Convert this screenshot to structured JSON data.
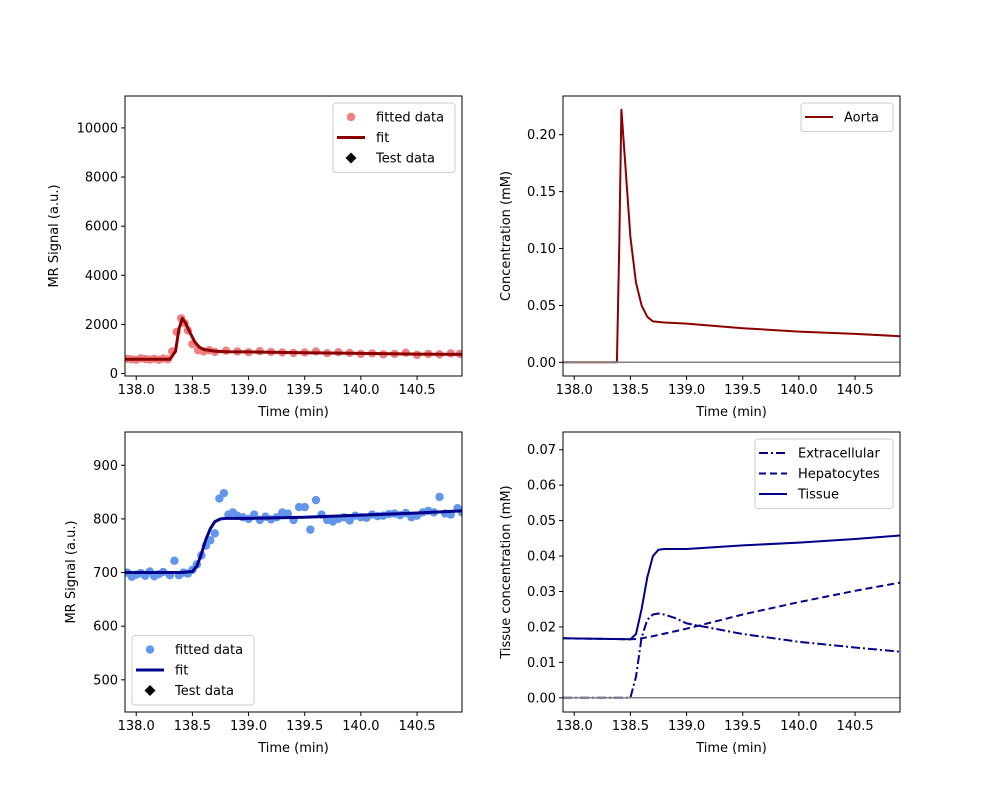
{
  "chart_data": [
    {
      "type": "scatter",
      "xlabel": "Time (min)",
      "ylabel": "MR Signal (a.u.)",
      "xlim": [
        137.9,
        140.9
      ],
      "ylim": [
        -100,
        11300
      ],
      "xticks": [
        "138.0",
        "138.5",
        "139.0",
        "139.5",
        "140.0",
        "140.5"
      ],
      "yticks": [
        "0",
        "2000",
        "4000",
        "6000",
        "8000",
        "10000"
      ],
      "legend_position": "top-right",
      "legend": [
        {
          "label": "fitted data",
          "marker": "dot",
          "color": "#f08080"
        },
        {
          "label": "fit",
          "marker": "line",
          "color": "#8b0000"
        },
        {
          "label": "Test data",
          "marker": "diamond",
          "color": "#000000"
        }
      ],
      "series": [
        {
          "name": "fitted data",
          "kind": "points",
          "color": "#f08080",
          "x": [
            137.92,
            137.96,
            138.0,
            138.04,
            138.08,
            138.12,
            138.16,
            138.2,
            138.24,
            138.28,
            138.32,
            138.36,
            138.4,
            138.43,
            138.46,
            138.5,
            138.55,
            138.6,
            138.65,
            138.7,
            138.8,
            138.9,
            139.0,
            139.1,
            139.2,
            139.3,
            139.4,
            139.5,
            139.6,
            139.7,
            139.8,
            139.9,
            140.0,
            140.1,
            140.2,
            140.3,
            140.4,
            140.5,
            140.6,
            140.7,
            140.8,
            140.88
          ],
          "y": [
            600,
            580,
            560,
            620,
            590,
            570,
            600,
            560,
            610,
            580,
            900,
            1700,
            2250,
            2050,
            1750,
            1200,
            950,
            900,
            950,
            880,
            930,
            900,
            870,
            910,
            880,
            860,
            840,
            860,
            900,
            830,
            870,
            840,
            800,
            820,
            780,
            800,
            850,
            760,
            800,
            780,
            820,
            800
          ]
        },
        {
          "name": "fit",
          "kind": "line",
          "color": "#8b0000",
          "width": 3,
          "x": [
            137.9,
            138.3,
            138.35,
            138.38,
            138.41,
            138.44,
            138.48,
            138.52,
            138.56,
            138.6,
            138.7,
            138.8,
            139.0,
            139.5,
            140.0,
            140.5,
            140.9
          ],
          "y": [
            580,
            580,
            900,
            1800,
            2250,
            2050,
            1650,
            1300,
            1080,
            980,
            910,
            890,
            880,
            850,
            820,
            790,
            780
          ]
        }
      ]
    },
    {
      "type": "line",
      "xlabel": "Time (min)",
      "ylabel": "Concentration (mM)",
      "xlim": [
        137.9,
        140.9
      ],
      "ylim": [
        -0.012,
        0.234
      ],
      "xticks": [
        "138.0",
        "138.5",
        "139.0",
        "139.5",
        "140.0",
        "140.5"
      ],
      "yticks": [
        "0.00",
        "0.05",
        "0.10",
        "0.15",
        "0.20"
      ],
      "legend_position": "top-right",
      "legend": [
        {
          "label": "Aorta",
          "marker": "line",
          "color": "#8b0000"
        }
      ],
      "series": [
        {
          "name": "Aorta",
          "kind": "line",
          "color": "#8b0000",
          "width": 2,
          "x": [
            137.9,
            138.38,
            138.4,
            138.42,
            138.45,
            138.5,
            138.55,
            138.6,
            138.65,
            138.7,
            138.8,
            139.0,
            139.5,
            140.0,
            140.5,
            140.9
          ],
          "y": [
            0,
            0,
            0.1,
            0.222,
            0.18,
            0.11,
            0.07,
            0.05,
            0.04,
            0.036,
            0.035,
            0.034,
            0.03,
            0.027,
            0.025,
            0.023
          ]
        },
        {
          "kind": "line",
          "color": "#808080",
          "width": 1.5,
          "x": [
            137.9,
            140.9
          ],
          "y": [
            0,
            0
          ]
        }
      ]
    },
    {
      "type": "scatter",
      "xlabel": "Time (min)",
      "ylabel": "MR Signal (a.u.)",
      "xlim": [
        137.9,
        140.9
      ],
      "ylim": [
        440,
        962
      ],
      "xticks": [
        "138.0",
        "138.5",
        "139.0",
        "139.5",
        "140.0",
        "140.5"
      ],
      "yticks": [
        "500",
        "600",
        "700",
        "800",
        "900"
      ],
      "legend_position": "bottom-left",
      "legend": [
        {
          "label": "fitted data",
          "marker": "dot",
          "color": "#6495ed"
        },
        {
          "label": "fit",
          "marker": "line",
          "color": "#00008b"
        },
        {
          "label": "Test data",
          "marker": "diamond",
          "color": "#000000"
        }
      ],
      "series": [
        {
          "name": "fitted data",
          "kind": "points",
          "color": "#6495ed",
          "x": [
            137.92,
            137.96,
            138.0,
            138.04,
            138.08,
            138.12,
            138.16,
            138.2,
            138.24,
            138.3,
            138.34,
            138.38,
            138.42,
            138.46,
            138.5,
            138.54,
            138.58,
            138.62,
            138.66,
            138.7,
            138.74,
            138.78,
            138.82,
            138.86,
            138.9,
            138.95,
            139.0,
            139.05,
            139.1,
            139.15,
            139.2,
            139.25,
            139.3,
            139.35,
            139.4,
            139.45,
            139.5,
            139.55,
            139.6,
            139.65,
            139.7,
            139.75,
            139.8,
            139.85,
            139.9,
            139.95,
            140.0,
            140.05,
            140.1,
            140.15,
            140.2,
            140.25,
            140.3,
            140.35,
            140.4,
            140.45,
            140.5,
            140.55,
            140.6,
            140.65,
            140.7,
            140.75,
            140.8,
            140.86,
            140.9
          ],
          "y": [
            700,
            692,
            696,
            699,
            694,
            702,
            693,
            697,
            701,
            695,
            722,
            695,
            700,
            698,
            705,
            715,
            732,
            750,
            760,
            773,
            838,
            848,
            808,
            812,
            806,
            803,
            800,
            808,
            798,
            804,
            799,
            803,
            812,
            810,
            798,
            822,
            822,
            780,
            835,
            808,
            798,
            795,
            800,
            803,
            797,
            806,
            803,
            802,
            808,
            805,
            806,
            809,
            810,
            807,
            811,
            803,
            806,
            812,
            815,
            812,
            841,
            810,
            808,
            820,
            812
          ]
        },
        {
          "name": "fit",
          "kind": "line",
          "color": "#00008b",
          "width": 3,
          "x": [
            137.9,
            138.4,
            138.5,
            138.54,
            138.58,
            138.62,
            138.66,
            138.7,
            138.75,
            138.8,
            139.0,
            139.5,
            140.0,
            140.5,
            140.9
          ],
          "y": [
            700,
            700,
            702,
            712,
            735,
            762,
            782,
            795,
            800,
            801,
            801,
            803,
            807,
            811,
            815
          ]
        }
      ]
    },
    {
      "type": "line",
      "xlabel": "Time (min)",
      "ylabel": "Tissue concentration (mM)",
      "xlim": [
        137.9,
        140.9
      ],
      "ylim": [
        -0.004,
        0.075
      ],
      "xticks": [
        "138.0",
        "138.5",
        "139.0",
        "139.5",
        "140.0",
        "140.5"
      ],
      "yticks": [
        "0.00",
        "0.01",
        "0.02",
        "0.03",
        "0.04",
        "0.05",
        "0.06",
        "0.07"
      ],
      "legend_position": "top-right",
      "legend": [
        {
          "label": "Extracellular",
          "marker": "dashdot",
          "color": "#00008b"
        },
        {
          "label": "Hepatocytes",
          "marker": "dashed",
          "color": "#00008b"
        },
        {
          "label": "Tissue",
          "marker": "line",
          "color": "#00008b"
        }
      ],
      "series": [
        {
          "name": "Extracellular",
          "kind": "line",
          "dash": "9,3,2,3",
          "color": "#00008b",
          "width": 2,
          "x": [
            137.9,
            138.5,
            138.55,
            138.6,
            138.65,
            138.7,
            138.75,
            138.8,
            138.9,
            139.0,
            139.5,
            140.0,
            140.5,
            140.9
          ],
          "y": [
            0,
            0,
            0.006,
            0.017,
            0.022,
            0.0235,
            0.0238,
            0.0235,
            0.0225,
            0.021,
            0.018,
            0.0158,
            0.0142,
            0.013
          ]
        },
        {
          "name": "Hepatocytes",
          "kind": "line",
          "dash": "7,4",
          "color": "#00008b",
          "width": 2,
          "x": [
            137.9,
            138.5,
            138.55,
            138.6,
            138.7,
            139.0,
            139.5,
            140.0,
            140.5,
            140.9
          ],
          "y": [
            0.0168,
            0.0165,
            0.0166,
            0.0168,
            0.0174,
            0.0195,
            0.0235,
            0.027,
            0.0302,
            0.0325
          ]
        },
        {
          "name": "Tissue",
          "kind": "line",
          "color": "#00008b",
          "width": 2,
          "x": [
            137.9,
            138.5,
            138.55,
            138.6,
            138.65,
            138.7,
            138.75,
            138.8,
            139.0,
            139.5,
            140.0,
            140.5,
            140.9
          ],
          "y": [
            0.0168,
            0.0165,
            0.018,
            0.025,
            0.034,
            0.04,
            0.0418,
            0.042,
            0.042,
            0.043,
            0.0438,
            0.0448,
            0.0458
          ]
        },
        {
          "kind": "line",
          "color": "#808080",
          "width": 1.5,
          "x": [
            137.9,
            140.9
          ],
          "y": [
            0,
            0
          ]
        }
      ]
    }
  ]
}
